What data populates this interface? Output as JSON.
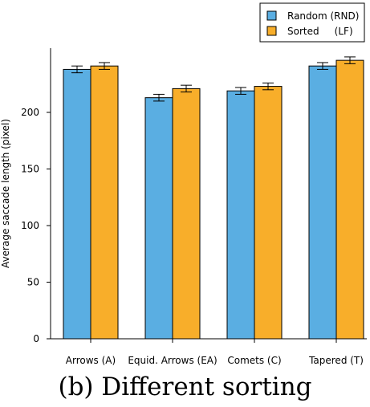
{
  "caption": "(b)  Different sorting",
  "chart_data": {
    "type": "bar",
    "ylabel": "Average saccade length (pixel)",
    "xlabel": "",
    "ylim": [
      0,
      250
    ],
    "yticks": [
      0,
      50,
      100,
      150,
      200
    ],
    "categories": [
      "Arrows (A)",
      "Equid. Arrows (EA)",
      "Comets (C)",
      "Tapered (T)"
    ],
    "series": [
      {
        "name": "Random (RND)",
        "color": "#5aaee2",
        "values": [
          238,
          213,
          219,
          241
        ],
        "errors": [
          3,
          3,
          3,
          3
        ]
      },
      {
        "name": "Sorted     (LF)",
        "color": "#f8ae2a",
        "values": [
          241,
          221,
          223,
          246
        ],
        "errors": [
          3,
          3,
          3,
          3
        ]
      }
    ],
    "legend_position": "top-right",
    "grid": false
  }
}
